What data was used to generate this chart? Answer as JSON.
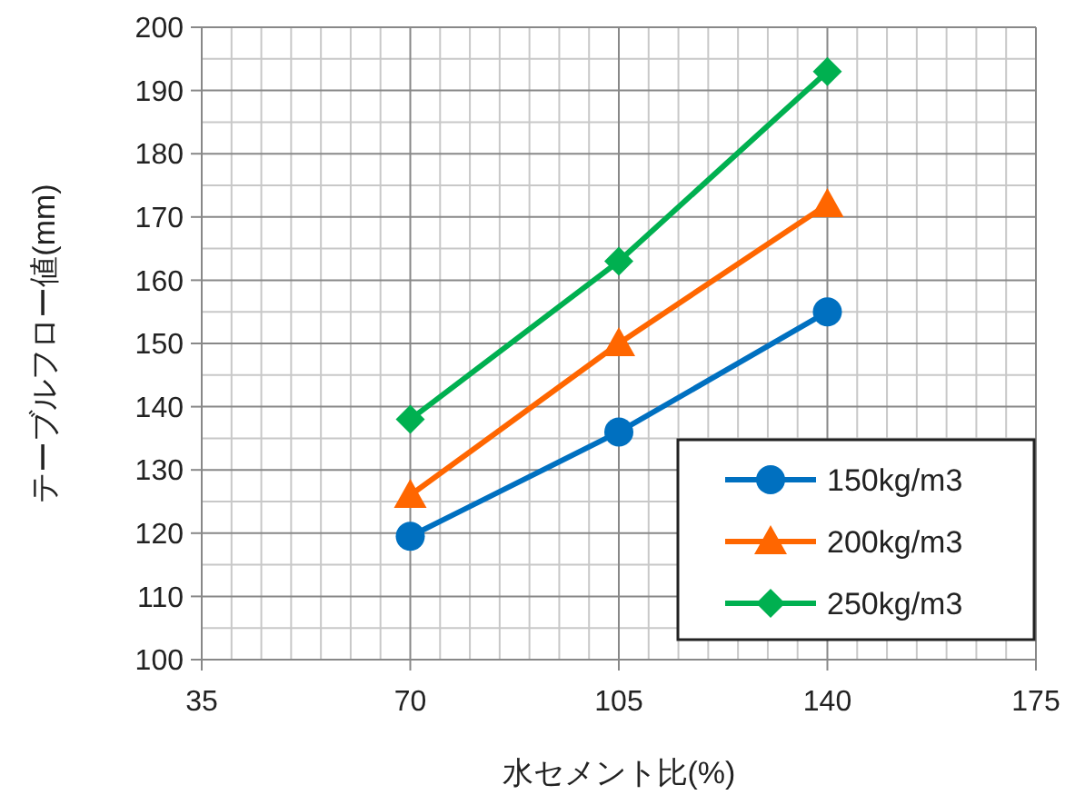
{
  "chart_data": {
    "type": "line",
    "xlabel": "水セメント比(%)",
    "ylabel": "テーブルフロー値(mm)",
    "x": [
      70,
      105,
      140
    ],
    "series": [
      {
        "name": "150kg/m3",
        "color": "#0070c0",
        "values": [
          119.5,
          136,
          155
        ],
        "marker": "circle"
      },
      {
        "name": "200kg/m3",
        "color": "#ff6600",
        "values": [
          126,
          150,
          172
        ],
        "marker": "triangle"
      },
      {
        "name": "250kg/m3",
        "color": "#00b050",
        "values": [
          138,
          163,
          193
        ],
        "marker": "diamond"
      }
    ],
    "xlim": [
      35,
      175
    ],
    "xticks": [
      35,
      70,
      105,
      140,
      175
    ],
    "ylim": [
      100,
      200
    ],
    "yticks": [
      100,
      110,
      120,
      130,
      140,
      150,
      160,
      170,
      180,
      190,
      200
    ],
    "grid": true,
    "legend": "bottom right",
    "line_style": "solid"
  }
}
